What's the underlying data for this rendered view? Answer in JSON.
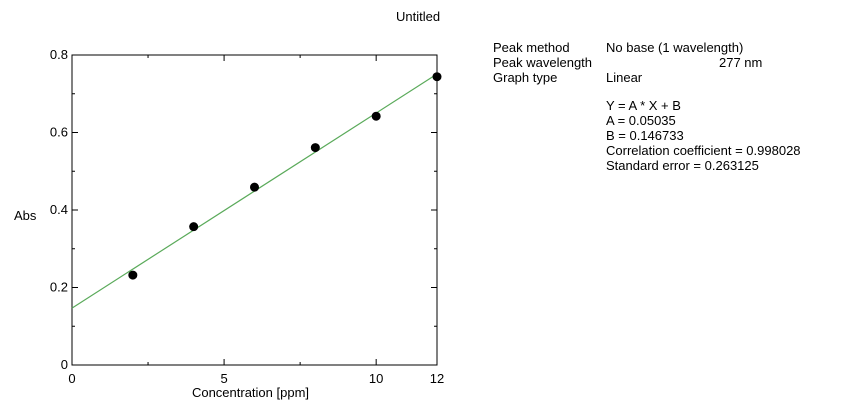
{
  "title": "Untitled",
  "info": {
    "peak_method_label": "Peak method",
    "peak_method_value": "No base (1 wavelength)",
    "peak_wavelength_label": "Peak wavelength",
    "peak_wavelength_value": "277 nm",
    "graph_type_label": "Graph type",
    "graph_type_value": "Linear"
  },
  "fit": {
    "equation": "Y = A * X + B",
    "a": "A = 0.05035",
    "b": "B = 0.146733",
    "correlation": "Correlation coefficient = 0.998028",
    "std_error": "Standard error = 0.263125"
  },
  "chart_data": {
    "type": "scatter",
    "xlabel": "Concentration [ppm]",
    "ylabel": "Abs",
    "xlim": [
      0,
      12
    ],
    "ylim": [
      0,
      0.8
    ],
    "x_ticks": [
      0,
      5,
      10,
      12
    ],
    "y_ticks": [
      0,
      0.2,
      0.4,
      0.6,
      0.8
    ],
    "x_tick_labels": [
      "0",
      "5",
      "10",
      "12"
    ],
    "y_tick_labels": [
      "0",
      "0.2",
      "0.4",
      "0.6",
      "0.8"
    ],
    "points": [
      {
        "x": 2,
        "y": 0.232
      },
      {
        "x": 4,
        "y": 0.357
      },
      {
        "x": 6,
        "y": 0.459
      },
      {
        "x": 8,
        "y": 0.561
      },
      {
        "x": 10,
        "y": 0.642
      },
      {
        "x": 12,
        "y": 0.744
      }
    ],
    "fit_line": {
      "slope": 0.05035,
      "intercept": 0.146733
    },
    "line_color": "#5aaa5a",
    "point_color": "#000000",
    "grid": false
  }
}
